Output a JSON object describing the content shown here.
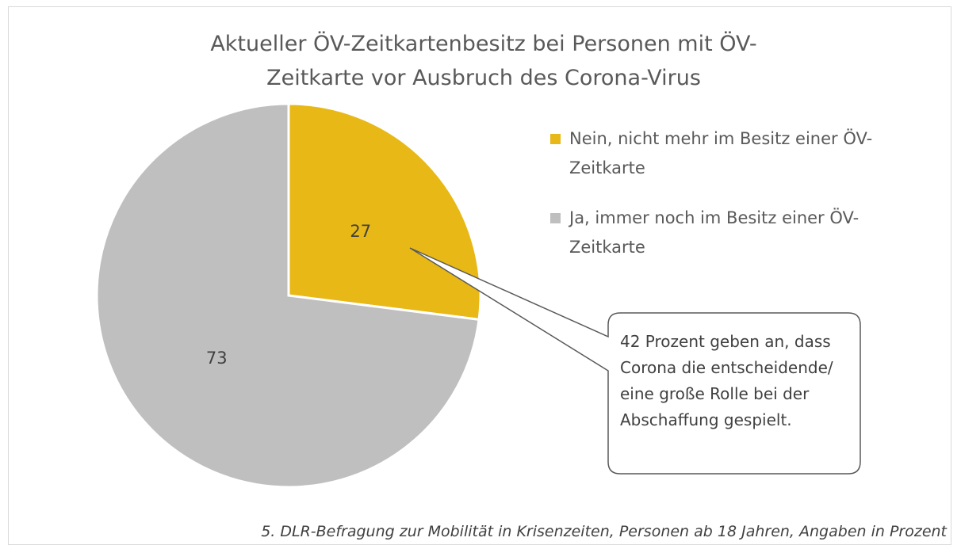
{
  "chart_data": {
    "type": "pie",
    "title": "Aktueller ÖV-Zeitkartenbesitz bei Personen mit ÖV-Zeitkarte vor Ausbruch des Corona-Virus",
    "categories": [
      "Nein, nicht mehr im Besitz einer ÖV-Zeitkarte",
      "Ja, immer noch im Besitz einer ÖV-Zeitkarte"
    ],
    "values": [
      27,
      73
    ],
    "colors": [
      "#e8b816",
      "#bfbfbf"
    ],
    "annotation": "42 Prozent geben an, dass Corona die entscheidende/ eine große Rolle bei der Abschaffung gespielt.",
    "footnote": "5. DLR-Befragung zur Mobilität in Krisenzeiten, Personen ab 18 Jahren, Angaben in Prozent",
    "legend": "right"
  }
}
